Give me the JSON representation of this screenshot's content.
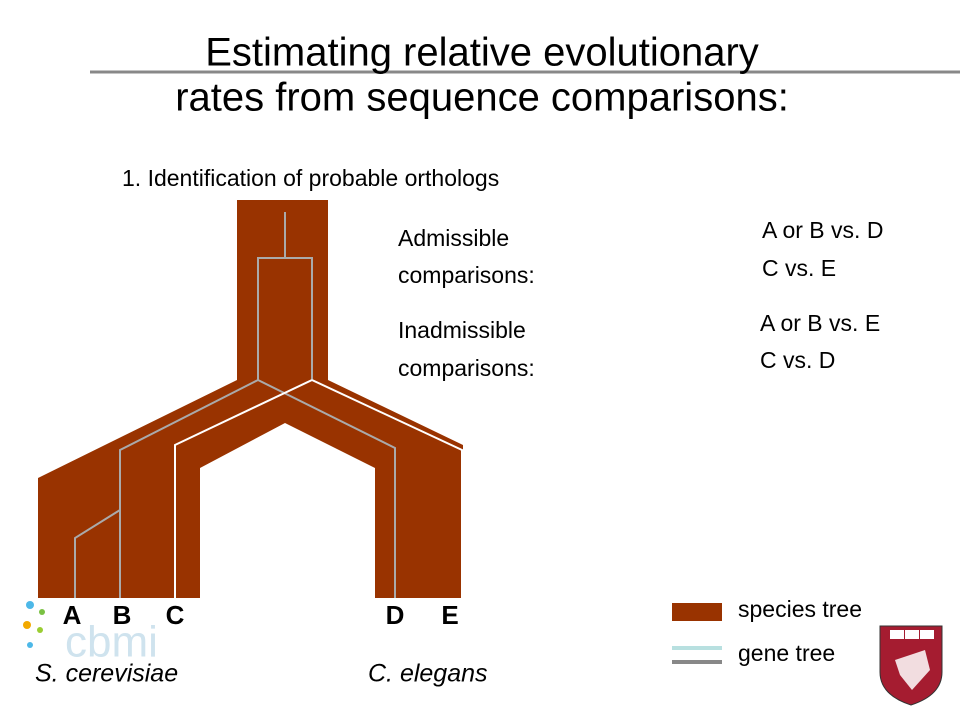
{
  "header": {
    "title_lines": [
      "Estimating relative evolutionary",
      "rates from sequence comparisons:"
    ],
    "subtitle": "1. Identification of probable orthologs"
  },
  "comparisons": {
    "admissible": {
      "label_lines": [
        "Admissible",
        "comparisons:"
      ],
      "items": [
        "A or B vs. D",
        "C vs. E"
      ]
    },
    "inadmissible": {
      "label_lines": [
        "Inadmissible",
        "comparisons:"
      ],
      "items": [
        "A or B vs. E",
        "C vs. D"
      ]
    }
  },
  "leaves": [
    "A",
    "B",
    "C",
    "D",
    "E"
  ],
  "species": [
    "S. cerevisiae",
    "C. elegans"
  ],
  "legend": [
    "species tree",
    "gene tree"
  ],
  "logo": {
    "text": "cbmi"
  }
}
